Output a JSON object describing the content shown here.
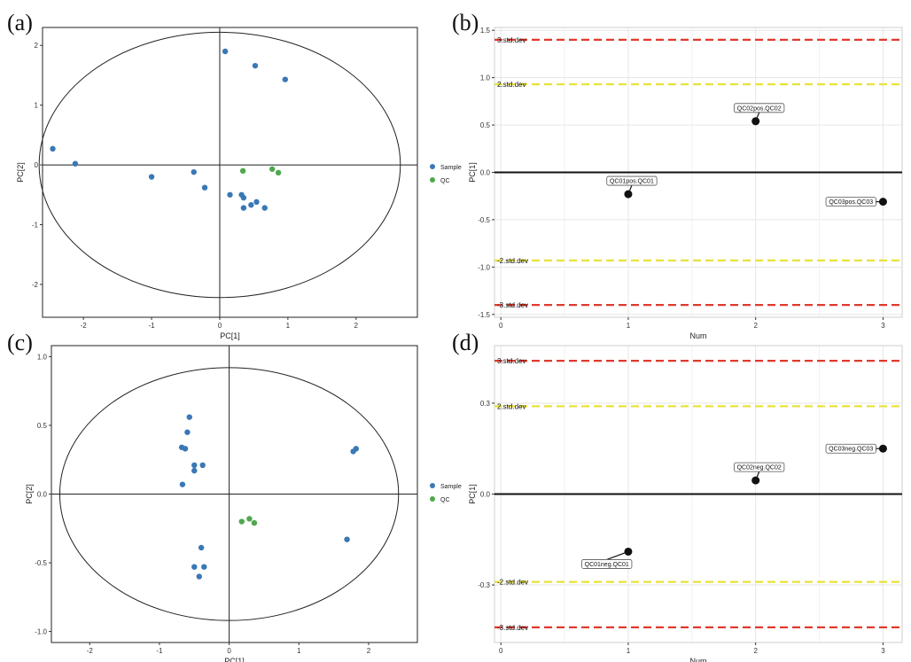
{
  "colors": {
    "sample": "#3A78B5",
    "qc": "#4FA84E",
    "red_line": "#E03A2E",
    "yellow_line": "#E8E23A",
    "black": "#111111",
    "grid": "#E6E6E6"
  },
  "chart_data": [
    {
      "panel": "(a)",
      "type": "scatter",
      "xlabel": "PC[1]",
      "ylabel": "PC[2]",
      "xlim": [
        -2.6,
        2.9
      ],
      "ylim": [
        -2.55,
        2.3
      ],
      "xticks": [
        -2,
        -1,
        0,
        1,
        2
      ],
      "yticks": [
        -2,
        -1,
        0,
        1,
        2
      ],
      "ellipse": {
        "cx": 0,
        "cy": 0,
        "rx": 2.65,
        "ry": 2.22
      },
      "grid": false,
      "legend_position": "right",
      "series": [
        {
          "name": "Sample",
          "points": [
            [
              -2.45,
              0.27
            ],
            [
              -2.12,
              0.02
            ],
            [
              -1.0,
              -0.2
            ],
            [
              -0.38,
              -0.12
            ],
            [
              -0.22,
              -0.38
            ],
            [
              0.08,
              1.9
            ],
            [
              0.15,
              -0.5
            ],
            [
              0.32,
              -0.5
            ],
            [
              0.35,
              -0.55
            ],
            [
              0.35,
              -0.72
            ],
            [
              0.46,
              -0.67
            ],
            [
              0.54,
              -0.62
            ],
            [
              0.66,
              -0.72
            ],
            [
              0.52,
              1.66
            ],
            [
              0.96,
              1.43
            ]
          ]
        },
        {
          "name": "QC",
          "points": [
            [
              0.34,
              -0.1
            ],
            [
              0.77,
              -0.07
            ],
            [
              0.86,
              -0.13
            ]
          ]
        }
      ]
    },
    {
      "panel": "(b)",
      "type": "scatter",
      "xlabel": "Num",
      "ylabel": "PC[1]",
      "xlim": [
        -0.05,
        3.15
      ],
      "ylim": [
        -1.53,
        1.53
      ],
      "xticks": [
        0,
        1,
        2,
        3
      ],
      "yticks": [
        -1.5,
        -1.0,
        -0.5,
        0.0,
        0.5,
        1.0,
        1.5
      ],
      "grid": true,
      "points": [
        {
          "x": 1,
          "y": -0.23,
          "label": "QC01pos.QC01"
        },
        {
          "x": 2,
          "y": 0.54,
          "label": "QC02pos.QC02"
        },
        {
          "x": 3,
          "y": -0.31,
          "label": "QC03pos.QC03"
        }
      ],
      "hlines": [
        {
          "y": 1.4,
          "label": "3.std.dev",
          "style": "red"
        },
        {
          "y": 0.93,
          "label": "2.std.dev",
          "style": "yellow"
        },
        {
          "y": 0.0,
          "label": "",
          "style": "black"
        },
        {
          "y": -0.93,
          "label": "-2.std.dev",
          "style": "yellow"
        },
        {
          "y": -1.4,
          "label": "-3.std.dev",
          "style": "red"
        }
      ]
    },
    {
      "panel": "(c)",
      "type": "scatter",
      "xlabel": "PC[1]",
      "ylabel": "PC[2]",
      "xlim": [
        -2.55,
        2.7
      ],
      "ylim": [
        -1.08,
        1.08
      ],
      "xticks": [
        -2,
        -1,
        0,
        1,
        2
      ],
      "yticks": [
        -1.0,
        -0.5,
        0.0,
        0.5,
        1.0
      ],
      "ellipse": {
        "cx": 0,
        "cy": 0,
        "rx": 2.43,
        "ry": 0.92
      },
      "grid": false,
      "legend_position": "right",
      "series": [
        {
          "name": "Sample",
          "points": [
            [
              -0.57,
              0.56
            ],
            [
              -0.6,
              0.45
            ],
            [
              -0.68,
              0.34
            ],
            [
              -0.63,
              0.33
            ],
            [
              -0.5,
              0.21
            ],
            [
              -0.38,
              0.21
            ],
            [
              -0.5,
              0.17
            ],
            [
              -0.67,
              0.07
            ],
            [
              -0.4,
              -0.39
            ],
            [
              -0.5,
              -0.53
            ],
            [
              -0.36,
              -0.53
            ],
            [
              -0.43,
              -0.6
            ],
            [
              1.78,
              0.31
            ],
            [
              1.82,
              0.33
            ],
            [
              1.69,
              -0.33
            ]
          ]
        },
        {
          "name": "QC",
          "points": [
            [
              0.18,
              -0.2
            ],
            [
              0.29,
              -0.18
            ],
            [
              0.36,
              -0.21
            ]
          ]
        }
      ]
    },
    {
      "panel": "(d)",
      "type": "scatter",
      "xlabel": "Num",
      "ylabel": "PC[1]",
      "xlim": [
        -0.05,
        3.15
      ],
      "ylim": [
        -0.49,
        0.49
      ],
      "xticks": [
        0,
        1,
        2,
        3
      ],
      "yticks": [
        -0.3,
        0.0,
        0.3
      ],
      "grid": true,
      "points": [
        {
          "x": 1,
          "y": -0.19,
          "label": "QC01neg.QC01"
        },
        {
          "x": 2,
          "y": 0.045,
          "label": "QC02neg.QC02"
        },
        {
          "x": 3,
          "y": 0.15,
          "label": "QC03neg.QC03"
        }
      ],
      "hlines": [
        {
          "y": 0.44,
          "label": "3.std.dev",
          "style": "red"
        },
        {
          "y": 0.29,
          "label": "2.std.dev",
          "style": "yellow"
        },
        {
          "y": 0.0,
          "label": "",
          "style": "black"
        },
        {
          "y": -0.29,
          "label": "-2.std.dev",
          "style": "yellow"
        },
        {
          "y": -0.44,
          "label": "-3.std.dev",
          "style": "red"
        }
      ]
    }
  ]
}
